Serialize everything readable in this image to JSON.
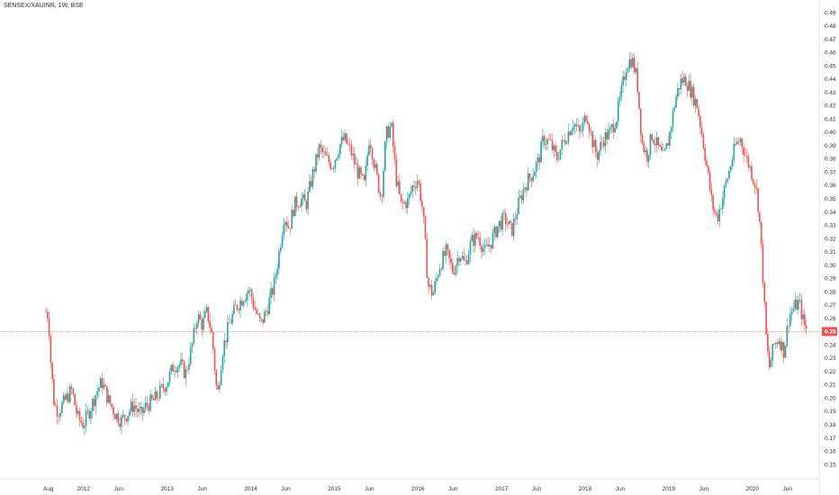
{
  "chart_data": {
    "type": "candlestick",
    "symbol": "SENSEX/XAUINR, 1W, BSE",
    "last_price": "0.25",
    "y_range": [
      0.15,
      0.49
    ],
    "y_ticks": [
      "0.49",
      "0.48",
      "0.47",
      "0.46",
      "0.45",
      "0.44",
      "0.43",
      "0.42",
      "0.41",
      "0.40",
      "0.39",
      "0.38",
      "0.37",
      "0.36",
      "0.35",
      "0.34",
      "0.33",
      "0.32",
      "0.31",
      "0.30",
      "0.29",
      "0.28",
      "0.27",
      "0.26",
      "0.25",
      "0.24",
      "0.23",
      "0.22",
      "0.21",
      "0.20",
      "0.19",
      "0.18",
      "0.17",
      "0.16",
      "0.15"
    ],
    "x_ticks": [
      {
        "label": "Aug",
        "t": 2011.58
      },
      {
        "label": "2012",
        "t": 2012.0
      },
      {
        "label": "Jun",
        "t": 2012.42
      },
      {
        "label": "2013",
        "t": 2013.0
      },
      {
        "label": "Jun",
        "t": 2013.42
      },
      {
        "label": "2014",
        "t": 2014.0
      },
      {
        "label": "Jun",
        "t": 2014.42
      },
      {
        "label": "2015",
        "t": 2015.0
      },
      {
        "label": "Jun",
        "t": 2015.42
      },
      {
        "label": "2016",
        "t": 2016.0
      },
      {
        "label": "Jun",
        "t": 2016.42
      },
      {
        "label": "2017",
        "t": 2017.0
      },
      {
        "label": "Jun",
        "t": 2017.42
      },
      {
        "label": "2018",
        "t": 2018.0
      },
      {
        "label": "Jun",
        "t": 2018.42
      },
      {
        "label": "2019",
        "t": 2019.0
      },
      {
        "label": "Jun",
        "t": 2019.42
      },
      {
        "label": "2020",
        "t": 2020.0
      },
      {
        "label": "Jun",
        "t": 2020.42
      }
    ],
    "x_range": [
      2011.0,
      2021.0
    ],
    "series_path": [
      [
        2011.55,
        0.265
      ],
      [
        2011.58,
        0.262
      ],
      [
        2011.61,
        0.225
      ],
      [
        2011.65,
        0.195
      ],
      [
        2011.7,
        0.19
      ],
      [
        2011.78,
        0.198
      ],
      [
        2011.86,
        0.206
      ],
      [
        2011.93,
        0.185
      ],
      [
        2012.0,
        0.18
      ],
      [
        2012.08,
        0.192
      ],
      [
        2012.16,
        0.205
      ],
      [
        2012.22,
        0.212
      ],
      [
        2012.3,
        0.198
      ],
      [
        2012.38,
        0.188
      ],
      [
        2012.45,
        0.183
      ],
      [
        2012.52,
        0.188
      ],
      [
        2012.6,
        0.195
      ],
      [
        2012.68,
        0.187
      ],
      [
        2012.76,
        0.195
      ],
      [
        2012.84,
        0.198
      ],
      [
        2012.92,
        0.205
      ],
      [
        2013.0,
        0.212
      ],
      [
        2013.08,
        0.225
      ],
      [
        2013.16,
        0.225
      ],
      [
        2013.22,
        0.218
      ],
      [
        2013.3,
        0.24
      ],
      [
        2013.36,
        0.262
      ],
      [
        2013.42,
        0.255
      ],
      [
        2013.48,
        0.265
      ],
      [
        2013.54,
        0.245
      ],
      [
        2013.6,
        0.2
      ],
      [
        2013.66,
        0.235
      ],
      [
        2013.74,
        0.255
      ],
      [
        2013.82,
        0.268
      ],
      [
        2013.9,
        0.275
      ],
      [
        2013.98,
        0.282
      ],
      [
        2014.06,
        0.265
      ],
      [
        2014.12,
        0.255
      ],
      [
        2014.2,
        0.268
      ],
      [
        2014.28,
        0.285
      ],
      [
        2014.34,
        0.31
      ],
      [
        2014.4,
        0.338
      ],
      [
        2014.46,
        0.328
      ],
      [
        2014.52,
        0.345
      ],
      [
        2014.6,
        0.35
      ],
      [
        2014.66,
        0.345
      ],
      [
        2014.74,
        0.368
      ],
      [
        2014.82,
        0.388
      ],
      [
        2014.9,
        0.38
      ],
      [
        2014.98,
        0.375
      ],
      [
        2015.06,
        0.39
      ],
      [
        2015.12,
        0.395
      ],
      [
        2015.2,
        0.385
      ],
      [
        2015.28,
        0.37
      ],
      [
        2015.36,
        0.36
      ],
      [
        2015.42,
        0.398
      ],
      [
        2015.48,
        0.375
      ],
      [
        2015.56,
        0.35
      ],
      [
        2015.62,
        0.398
      ],
      [
        2015.68,
        0.405
      ],
      [
        2015.74,
        0.365
      ],
      [
        2015.8,
        0.345
      ],
      [
        2015.88,
        0.348
      ],
      [
        2015.94,
        0.36
      ],
      [
        2016.0,
        0.365
      ],
      [
        2016.06,
        0.34
      ],
      [
        2016.12,
        0.285
      ],
      [
        2016.18,
        0.278
      ],
      [
        2016.26,
        0.3
      ],
      [
        2016.34,
        0.31
      ],
      [
        2016.42,
        0.295
      ],
      [
        2016.5,
        0.31
      ],
      [
        2016.56,
        0.3
      ],
      [
        2016.64,
        0.318
      ],
      [
        2016.72,
        0.322
      ],
      [
        2016.8,
        0.31
      ],
      [
        2016.88,
        0.318
      ],
      [
        2016.96,
        0.33
      ],
      [
        2017.04,
        0.335
      ],
      [
        2017.12,
        0.325
      ],
      [
        2017.2,
        0.345
      ],
      [
        2017.28,
        0.36
      ],
      [
        2017.36,
        0.368
      ],
      [
        2017.44,
        0.378
      ],
      [
        2017.5,
        0.395
      ],
      [
        2017.58,
        0.392
      ],
      [
        2017.66,
        0.38
      ],
      [
        2017.72,
        0.39
      ],
      [
        2017.8,
        0.4
      ],
      [
        2017.86,
        0.408
      ],
      [
        2017.94,
        0.398
      ],
      [
        2018.02,
        0.415
      ],
      [
        2018.08,
        0.395
      ],
      [
        2018.14,
        0.382
      ],
      [
        2018.22,
        0.395
      ],
      [
        2018.3,
        0.4
      ],
      [
        2018.38,
        0.412
      ],
      [
        2018.44,
        0.432
      ],
      [
        2018.5,
        0.452
      ],
      [
        2018.56,
        0.455
      ],
      [
        2018.62,
        0.44
      ],
      [
        2018.68,
        0.392
      ],
      [
        2018.74,
        0.382
      ],
      [
        2018.8,
        0.398
      ],
      [
        2018.86,
        0.39
      ],
      [
        2018.94,
        0.38
      ],
      [
        2019.0,
        0.395
      ],
      [
        2019.08,
        0.425
      ],
      [
        2019.14,
        0.438
      ],
      [
        2019.2,
        0.44
      ],
      [
        2019.26,
        0.432
      ],
      [
        2019.34,
        0.42
      ],
      [
        2019.4,
        0.398
      ],
      [
        2019.46,
        0.372
      ],
      [
        2019.52,
        0.345
      ],
      [
        2019.58,
        0.335
      ],
      [
        2019.64,
        0.35
      ],
      [
        2019.72,
        0.37
      ],
      [
        2019.8,
        0.39
      ],
      [
        2019.86,
        0.395
      ],
      [
        2019.92,
        0.382
      ],
      [
        2019.98,
        0.372
      ],
      [
        2020.04,
        0.36
      ],
      [
        2020.08,
        0.34
      ],
      [
        2020.12,
        0.3
      ],
      [
        2020.16,
        0.25
      ],
      [
        2020.2,
        0.222
      ],
      [
        2020.26,
        0.24
      ],
      [
        2020.32,
        0.245
      ],
      [
        2020.38,
        0.235
      ],
      [
        2020.44,
        0.262
      ],
      [
        2020.5,
        0.268
      ],
      [
        2020.56,
        0.272
      ],
      [
        2020.62,
        0.255
      ],
      [
        2020.66,
        0.25
      ]
    ]
  }
}
